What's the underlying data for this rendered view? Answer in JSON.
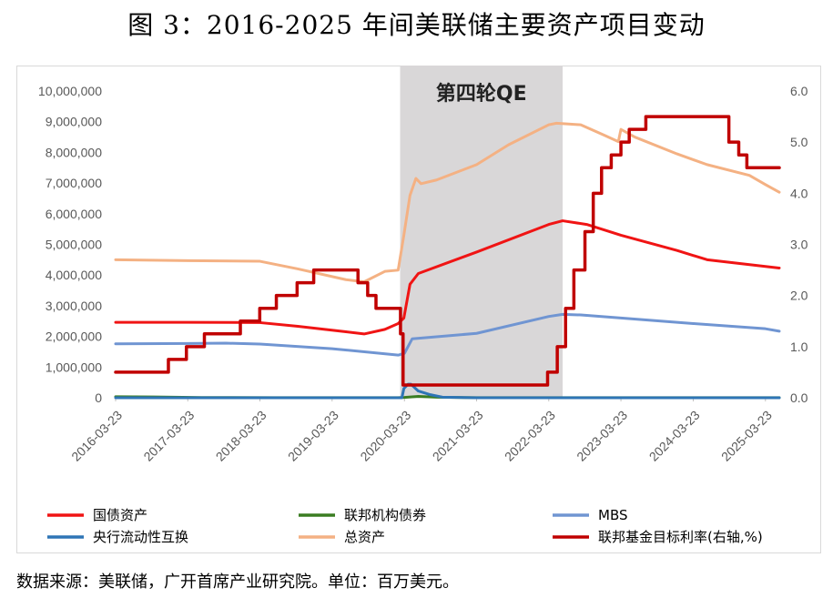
{
  "header": {
    "title": "图 3：2016-2025 年间美联储主要资产项目变动"
  },
  "footer": {
    "source": "数据来源：美联储，广开首席产业研究院。单位：百万美元。"
  },
  "colors": {
    "treasury": "#f01414",
    "agency": "#3a7d22",
    "mbs": "#7095d2",
    "swaps": "#2e75b6",
    "total": "#f4b183",
    "fedrate": "#c00000",
    "shade": "#d9d7d8"
  },
  "chart_data": {
    "type": "line",
    "title": "",
    "qe_label": "第四轮QE",
    "qe_period": [
      "2020-03-01",
      "2022-06-01"
    ],
    "x_ticks": [
      "2016-03-23",
      "2017-03-23",
      "2018-03-23",
      "2019-03-23",
      "2020-03-23",
      "2021-03-23",
      "2022-03-23",
      "2023-03-23",
      "2024-03-23",
      "2025-03-23"
    ],
    "y_left": {
      "min": 0,
      "max": 10000000,
      "ticks": [
        "0",
        "1,000,000",
        "2,000,000",
        "3,000,000",
        "4,000,000",
        "5,000,000",
        "6,000,000",
        "7,000,000",
        "8,000,000",
        "9,000,000",
        "10,000,000"
      ]
    },
    "y_right": {
      "min": 0,
      "max": 6,
      "ticks": [
        "0.0",
        "1.0",
        "2.0",
        "3.0",
        "4.0",
        "5.0",
        "6.0"
      ]
    },
    "legend": [
      {
        "key": "treasury",
        "label": "国债资产"
      },
      {
        "key": "agency",
        "label": "联邦机构债券"
      },
      {
        "key": "mbs",
        "label": "MBS"
      },
      {
        "key": "swaps",
        "label": "央行流动性互换"
      },
      {
        "key": "total",
        "label": "总资产"
      },
      {
        "key": "fedrate",
        "label": "联邦基金目标利率(右轴,%)"
      }
    ],
    "series": [
      {
        "key": "total",
        "name": "总资产",
        "axis": "left",
        "x": [
          "2016-03-23",
          "2017-03-23",
          "2018-03-23",
          "2018-10-01",
          "2019-06-01",
          "2019-09-01",
          "2019-12-15",
          "2020-02-20",
          "2020-03-20",
          "2020-04-20",
          "2020-05-20",
          "2020-06-15",
          "2020-09-01",
          "2021-03-23",
          "2021-09-01",
          "2022-03-23",
          "2022-05-01",
          "2022-09-01",
          "2023-01-01",
          "2023-03-10",
          "2023-03-23",
          "2023-06-01",
          "2024-01-01",
          "2024-06-01",
          "2025-01-01",
          "2025-03-23",
          "2025-06-01"
        ],
        "y": [
          4500000,
          4470000,
          4450000,
          4200000,
          3850000,
          3780000,
          4120000,
          4160000,
          5300000,
          6600000,
          7150000,
          6980000,
          7100000,
          7600000,
          8250000,
          8900000,
          8950000,
          8900000,
          8550000,
          8350000,
          8750000,
          8500000,
          7950000,
          7600000,
          7250000,
          6950000,
          6700000
        ]
      },
      {
        "key": "treasury",
        "name": "国债资产",
        "axis": "left",
        "x": [
          "2016-03-23",
          "2017-03-23",
          "2018-03-23",
          "2018-10-01",
          "2019-06-01",
          "2019-09-01",
          "2019-12-15",
          "2020-02-20",
          "2020-03-20",
          "2020-04-20",
          "2020-06-01",
          "2021-03-23",
          "2022-03-23",
          "2022-06-01",
          "2022-10-01",
          "2023-03-23",
          "2024-01-01",
          "2024-06-01",
          "2025-03-23",
          "2025-06-01"
        ],
        "y": [
          2460000,
          2460000,
          2450000,
          2330000,
          2150000,
          2080000,
          2230000,
          2420000,
          2600000,
          3700000,
          4050000,
          4750000,
          5650000,
          5770000,
          5650000,
          5300000,
          4800000,
          4500000,
          4280000,
          4230000
        ]
      },
      {
        "key": "mbs",
        "name": "MBS",
        "axis": "left",
        "x": [
          "2016-03-23",
          "2017-03-23",
          "2017-10-01",
          "2018-03-23",
          "2019-03-23",
          "2020-02-20",
          "2020-03-23",
          "2020-05-01",
          "2021-03-23",
          "2022-03-23",
          "2022-06-01",
          "2022-09-01",
          "2023-03-23",
          "2024-03-23",
          "2025-03-23",
          "2025-06-01"
        ],
        "y": [
          1760000,
          1770000,
          1780000,
          1750000,
          1600000,
          1390000,
          1450000,
          1920000,
          2100000,
          2650000,
          2720000,
          2700000,
          2600000,
          2420000,
          2250000,
          2170000
        ]
      },
      {
        "key": "agency",
        "name": "联邦机构债券",
        "axis": "left",
        "x": [
          "2016-03-23",
          "2016-10-01",
          "2017-06-01",
          "2018-06-01",
          "2019-03-23",
          "2020-02-20",
          "2020-03-23",
          "2020-06-01",
          "2020-09-01",
          "2021-03-23",
          "2025-06-01"
        ],
        "y": [
          35000,
          25000,
          8000,
          3000,
          2000,
          2000,
          12000,
          45000,
          20000,
          2000,
          2000
        ]
      },
      {
        "key": "swaps",
        "name": "央行流动性互换",
        "axis": "left",
        "x": [
          "2016-03-23",
          "2020-03-10",
          "2020-03-20",
          "2020-04-10",
          "2020-04-25",
          "2020-06-01",
          "2020-08-01",
          "2020-10-01",
          "2021-03-23",
          "2025-06-01"
        ],
        "y": [
          0,
          0,
          300000,
          440000,
          440000,
          220000,
          100000,
          20000,
          0,
          0
        ]
      },
      {
        "key": "fedrate",
        "name": "联邦基金目标利率(右轴,%)",
        "axis": "right",
        "x": [
          "2016-03-23",
          "2016-12-15",
          "2017-03-16",
          "2017-06-15",
          "2017-12-14",
          "2018-03-22",
          "2018-06-14",
          "2018-09-27",
          "2018-12-20",
          "2019-08-01",
          "2019-09-19",
          "2019-10-31",
          "2020-03-03",
          "2020-03-16",
          "2022-03-17",
          "2022-05-05",
          "2022-06-16",
          "2022-07-28",
          "2022-09-22",
          "2022-11-03",
          "2022-12-15",
          "2023-02-02",
          "2023-03-23",
          "2023-05-04",
          "2023-07-27",
          "2024-09-19",
          "2024-11-08",
          "2024-12-19",
          "2025-06-01"
        ],
        "y": [
          0.5,
          0.75,
          1.0,
          1.25,
          1.5,
          1.75,
          2.0,
          2.25,
          2.5,
          2.25,
          2.0,
          1.75,
          1.25,
          0.25,
          0.5,
          1.0,
          1.75,
          2.5,
          3.25,
          4.0,
          4.5,
          4.75,
          5.0,
          5.25,
          5.5,
          5.0,
          4.75,
          4.5,
          4.5
        ]
      }
    ]
  }
}
